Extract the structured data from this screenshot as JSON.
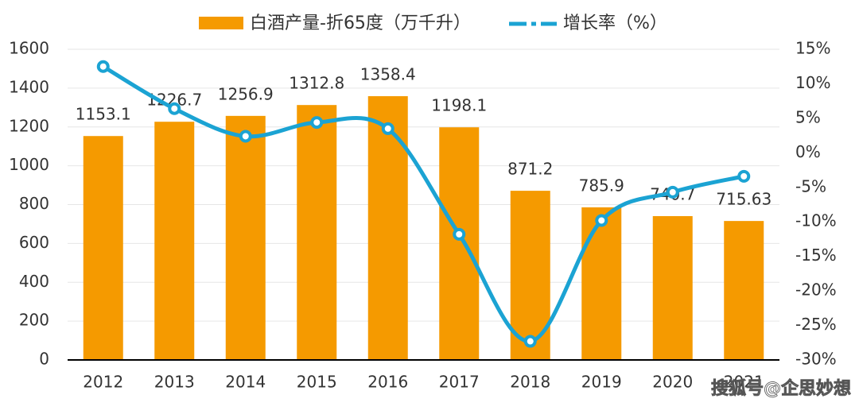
{
  "chart_data": {
    "type": "bar-line",
    "categories": [
      "2012",
      "2013",
      "2014",
      "2015",
      "2016",
      "2017",
      "2018",
      "2019",
      "2020",
      "2021"
    ],
    "series": [
      {
        "name": "白酒产量-折65度（万千升）",
        "type": "bar",
        "color": "#f59a00",
        "values": [
          1153.1,
          1226.7,
          1256.9,
          1312.8,
          1358.4,
          1198.1,
          871.2,
          785.9,
          740.7,
          715.63
        ]
      },
      {
        "name": "增长率（%）",
        "type": "line",
        "axis": "y2",
        "color": "#1ba3d3",
        "values": [
          12.5,
          6.4,
          2.4,
          4.4,
          3.5,
          -11.8,
          -27.3,
          -9.8,
          -5.7,
          -3.4
        ]
      }
    ],
    "ylim": [
      0,
      1600
    ],
    "yticks": [
      0,
      200,
      400,
      600,
      800,
      1000,
      1200,
      1400,
      1600
    ],
    "y2lim": [
      -30,
      15
    ],
    "y2ticks": [
      {
        "value": -30,
        "label": "-30%"
      },
      {
        "value": -25,
        "label": "-25%"
      },
      {
        "value": -20,
        "label": "-20%"
      },
      {
        "value": -15,
        "label": "-15%"
      },
      {
        "value": -10,
        "label": "-10%"
      },
      {
        "value": -5,
        "label": "-5%"
      },
      {
        "value": 0,
        "label": "0%"
      },
      {
        "value": 5,
        "label": "5%"
      },
      {
        "value": 10,
        "label": "10%"
      },
      {
        "value": 15,
        "label": "15%"
      }
    ],
    "grid": true,
    "legend": "top",
    "watermark": "搜狐号@企思妙想"
  }
}
